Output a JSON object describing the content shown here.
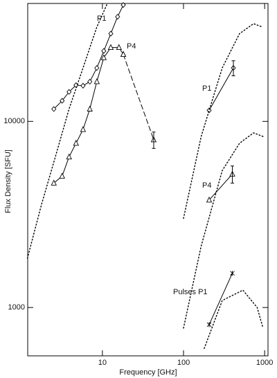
{
  "chart_data": {
    "type": "line",
    "xlabel": "Frequency [GHz]",
    "ylabel": "Flux Density [SFU]",
    "xscale": "log",
    "yscale": "log",
    "xlim": [
      1.2,
      1100
    ],
    "ylim": [
      550,
      43000
    ],
    "xticks": [
      10,
      100,
      1000
    ],
    "yticks": [
      1000,
      10000
    ],
    "series": [
      {
        "color": "#000000",
        "marker": "diamond",
        "line": "solid",
        "x": [
          2.52,
          3.19,
          3.88,
          4.73,
          5.77,
          7.0,
          8.54,
          10.4,
          12.7,
          15.4,
          18.1
        ],
        "values": [
          11650,
          12900,
          14400,
          15650,
          15550,
          16340,
          19350,
          23900,
          29600,
          36500,
          42200
        ]
      },
      {
        "color": "#000000",
        "marker": "triangle",
        "line": "solid",
        "x": [
          2.52,
          3.19,
          3.88,
          4.73,
          5.77,
          7.0,
          8.54,
          10.4,
          12.7,
          16.0,
          18.1
        ],
        "values": [
          4660,
          5080,
          6440,
          7630,
          9040,
          11650,
          16340,
          21980,
          24950,
          24950,
          22900
        ]
      },
      {
        "color": "#000000",
        "marker": "triangle",
        "line": "dashed",
        "x": [
          18.1,
          42.9
        ],
        "values": [
          22900,
          7960
        ],
        "errors": [
          null,
          800
        ]
      },
      {
        "color": "#000000",
        "marker": "diamond",
        "line": "solid",
        "x": [
          207,
          412
        ],
        "values": [
          11460,
          19370
        ],
        "errors": [
          null,
          1800
        ]
      },
      {
        "color": "#000000",
        "marker": "triangle",
        "line": "solid",
        "x": [
          207,
          400
        ],
        "values": [
          3780,
          5210
        ],
        "errors": [
          null,
          550
        ]
      },
      {
        "color": "#000000",
        "marker": "cross",
        "line": "solid",
        "x": [
          207,
          400
        ],
        "values": [
          809,
          1528
        ]
      },
      {
        "color": "#000000",
        "marker": "none",
        "line": "dotted",
        "x": [
          1.19,
          1.77,
          2.63,
          3.88,
          5.77,
          8.54,
          11.5
        ],
        "values": [
          1840,
          3560,
          6440,
          11650,
          19370,
          32100,
          43000
        ]
      },
      {
        "color": "#000000",
        "marker": "none",
        "line": "dotted",
        "x": [
          100,
          165,
          300,
          490,
          730,
          945
        ],
        "values": [
          3010,
          8300,
          19370,
          29600,
          33500,
          32100
        ]
      },
      {
        "color": "#000000",
        "marker": "none",
        "line": "dotted",
        "x": [
          100,
          165,
          300,
          490,
          730,
          955
        ],
        "values": [
          775,
          2140,
          5440,
          7630,
          8680,
          8300
        ]
      },
      {
        "color": "#000000",
        "marker": "none",
        "line": "dotted",
        "x": [
          180,
          300,
          540,
          810,
          955
        ],
        "values": [
          603,
          1090,
          1240,
          1000,
          775
        ]
      }
    ],
    "annotations": [
      "P1",
      "P4",
      "P1",
      "P4",
      "Pulses P1"
    ]
  }
}
